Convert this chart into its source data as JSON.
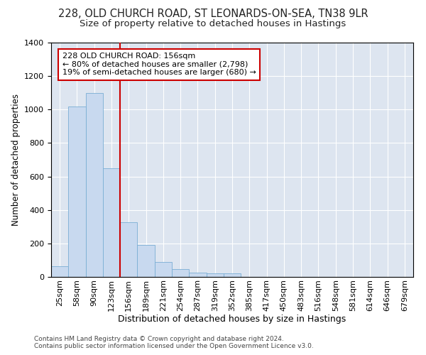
{
  "title1": "228, OLD CHURCH ROAD, ST LEONARDS-ON-SEA, TN38 9LR",
  "title2": "Size of property relative to detached houses in Hastings",
  "xlabel": "Distribution of detached houses by size in Hastings",
  "ylabel": "Number of detached properties",
  "footer": "Contains HM Land Registry data © Crown copyright and database right 2024.\nContains public sector information licensed under the Open Government Licence v3.0.",
  "categories": [
    "25sqm",
    "58sqm",
    "90sqm",
    "123sqm",
    "156sqm",
    "189sqm",
    "221sqm",
    "254sqm",
    "287sqm",
    "319sqm",
    "352sqm",
    "385sqm",
    "417sqm",
    "450sqm",
    "483sqm",
    "516sqm",
    "548sqm",
    "581sqm",
    "614sqm",
    "646sqm",
    "679sqm"
  ],
  "values": [
    65,
    1020,
    1100,
    650,
    325,
    190,
    90,
    47,
    25,
    22,
    20,
    0,
    0,
    0,
    0,
    0,
    0,
    0,
    0,
    0,
    0
  ],
  "bar_color": "#c8d9ef",
  "bar_edge_color": "#7aaed4",
  "vline_x_index": 4,
  "vline_color": "#cc0000",
  "annotation_text": "228 OLD CHURCH ROAD: 156sqm\n← 80% of detached houses are smaller (2,798)\n19% of semi-detached houses are larger (680) →",
  "annotation_box_color": "#ffffff",
  "annotation_box_edge": "#cc0000",
  "ylim": [
    0,
    1400
  ],
  "plot_bg_color": "#dde5f0",
  "grid_color": "#ffffff",
  "title_fontsize": 10.5,
  "subtitle_fontsize": 9.5,
  "tick_fontsize": 8,
  "ylabel_fontsize": 8.5,
  "xlabel_fontsize": 9,
  "annotation_fontsize": 8,
  "footer_fontsize": 6.5
}
